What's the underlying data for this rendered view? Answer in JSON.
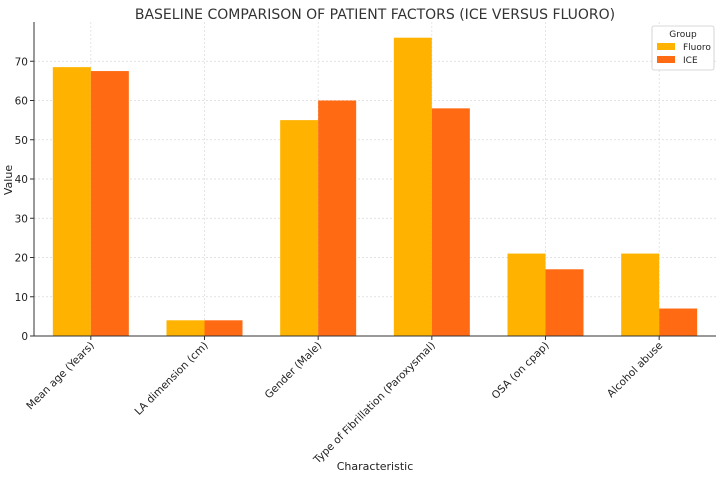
{
  "chart_data": {
    "type": "bar",
    "title": "BASELINE COMPARISON OF PATIENT FACTORS (ICE VERSUS FLUORO)",
    "xlabel": "Characteristic",
    "ylabel": "Value",
    "ylim": [
      0,
      80
    ],
    "yticks": [
      0,
      10,
      20,
      30,
      40,
      50,
      60,
      70
    ],
    "grid": true,
    "legend": {
      "title": "Group",
      "position": "top-right"
    },
    "categories": [
      "Mean age (Years)",
      "LA dimension (cm)",
      "Gender (Male)",
      "Type of Fibrillation (Paroxysmal)",
      "OSA (on cpap)",
      "Alcohol abuse"
    ],
    "series": [
      {
        "name": "Fluoro",
        "color": "#FFB300",
        "values": [
          68.5,
          4,
          55,
          76,
          21,
          21
        ]
      },
      {
        "name": "ICE",
        "color": "#FF6A13",
        "values": [
          67.5,
          4,
          60,
          58,
          17,
          7
        ]
      }
    ]
  }
}
